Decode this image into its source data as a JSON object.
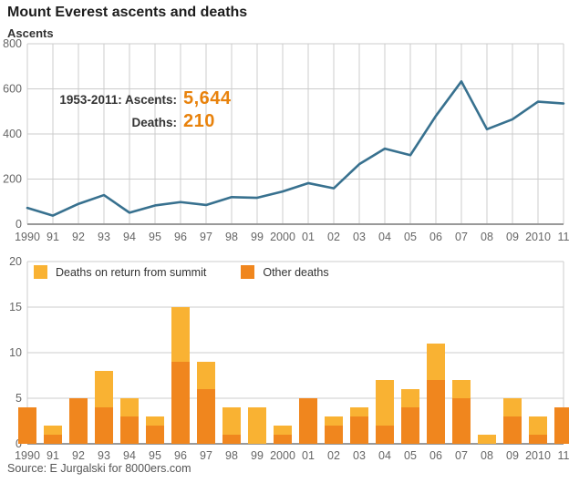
{
  "header": {
    "title": "Mount Everest ascents and deaths"
  },
  "annotation": {
    "line1_label": "1953-2011: Ascents:",
    "ascents_value": "5,644",
    "deaths_label": "Deaths:",
    "deaths_value": "210",
    "value_color": "#e8820c"
  },
  "source": {
    "text": "Source: E Jurgalski for 8000ers.com"
  },
  "chart_data": [
    {
      "type": "line",
      "title": "Ascents",
      "ylabel": "Ascents",
      "x": [
        "1990",
        "91",
        "92",
        "93",
        "94",
        "95",
        "96",
        "97",
        "98",
        "99",
        "2000",
        "01",
        "02",
        "03",
        "04",
        "05",
        "06",
        "07",
        "08",
        "09",
        "2010",
        "11"
      ],
      "values": [
        72,
        38,
        90,
        129,
        51,
        83,
        98,
        85,
        120,
        117,
        145,
        182,
        159,
        266,
        335,
        306,
        480,
        633,
        421,
        465,
        543,
        535
      ],
      "ylim": [
        0,
        800
      ],
      "yticks": [
        0,
        200,
        400,
        600,
        800
      ],
      "grid": "horizontal-and-vertical",
      "line_color": "#38718f",
      "grid_color": "#cccccc",
      "axis_color": "#999999",
      "tick_color": "#666666"
    },
    {
      "type": "bar",
      "stacked": true,
      "x": [
        "1990",
        "91",
        "92",
        "93",
        "94",
        "95",
        "96",
        "97",
        "98",
        "99",
        "2000",
        "01",
        "02",
        "03",
        "04",
        "05",
        "06",
        "07",
        "08",
        "09",
        "2010",
        "11"
      ],
      "series": [
        {
          "name": "Other deaths",
          "color": "#f0861e",
          "values": [
            4,
            1,
            5,
            4,
            3,
            2,
            9,
            6,
            1,
            0,
            1,
            5,
            2,
            3,
            2,
            4,
            7,
            5,
            0,
            3,
            1,
            4
          ]
        },
        {
          "name": "Deaths on return from summit",
          "color": "#f9b233",
          "values": [
            0,
            1,
            0,
            4,
            2,
            1,
            6,
            3,
            3,
            4,
            1,
            0,
            1,
            1,
            5,
            2,
            4,
            2,
            1,
            2,
            2,
            0
          ]
        }
      ],
      "totals": [
        4,
        2,
        5,
        8,
        5,
        3,
        15,
        9,
        4,
        4,
        2,
        5,
        3,
        4,
        7,
        6,
        11,
        7,
        1,
        5,
        3,
        4
      ],
      "ylim": [
        0,
        20
      ],
      "yticks": [
        0,
        5,
        10,
        15,
        20
      ],
      "grid": "horizontal",
      "legend": [
        {
          "label": "Deaths on return from summit",
          "color": "#f9b233"
        },
        {
          "label": "Other deaths",
          "color": "#f0861e"
        }
      ],
      "legend_position": "top-left-inside",
      "grid_color": "#cccccc",
      "axis_color": "#999999",
      "tick_color": "#666666"
    }
  ]
}
